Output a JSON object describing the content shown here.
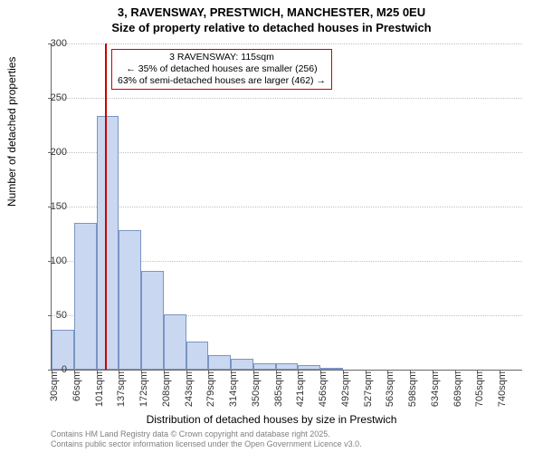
{
  "title_line1": "3, RAVENSWAY, PRESTWICH, MANCHESTER, M25 0EU",
  "title_line2": "Size of property relative to detached houses in Prestwich",
  "ylabel": "Number of detached properties",
  "xlabel": "Distribution of detached houses by size in Prestwich",
  "credits_line1": "Contains HM Land Registry data © Crown copyright and database right 2025.",
  "credits_line2": "Contains public sector information licensed under the Open Government Licence v3.0.",
  "annotation": {
    "line1": "3 RAVENSWAY: 115sqm",
    "line2": "← 35% of detached houses are smaller (256)",
    "line3": "63% of semi-detached houses are larger (462) →"
  },
  "chart": {
    "type": "histogram",
    "ylim": [
      0,
      300
    ],
    "ytick_step": 50,
    "bar_fill": "#c9d8f0",
    "bar_stroke": "#7a95c4",
    "grid_color": "#c0c0c0",
    "marker_color": "#cc0000",
    "marker_x_value": 115,
    "x_start": 30,
    "x_step": 35.5,
    "categories": [
      "30sqm",
      "66sqm",
      "101sqm",
      "137sqm",
      "172sqm",
      "208sqm",
      "243sqm",
      "279sqm",
      "314sqm",
      "350sqm",
      "385sqm",
      "421sqm",
      "456sqm",
      "492sqm",
      "527sqm",
      "563sqm",
      "598sqm",
      "634sqm",
      "669sqm",
      "705sqm",
      "740sqm"
    ],
    "values": [
      37,
      135,
      233,
      128,
      91,
      51,
      26,
      13,
      10,
      6,
      6,
      4,
      2,
      0,
      0,
      0,
      0,
      0,
      0,
      0
    ],
    "tick_fontsize": 11,
    "label_fontsize": 12,
    "title_fontsize": 13
  }
}
